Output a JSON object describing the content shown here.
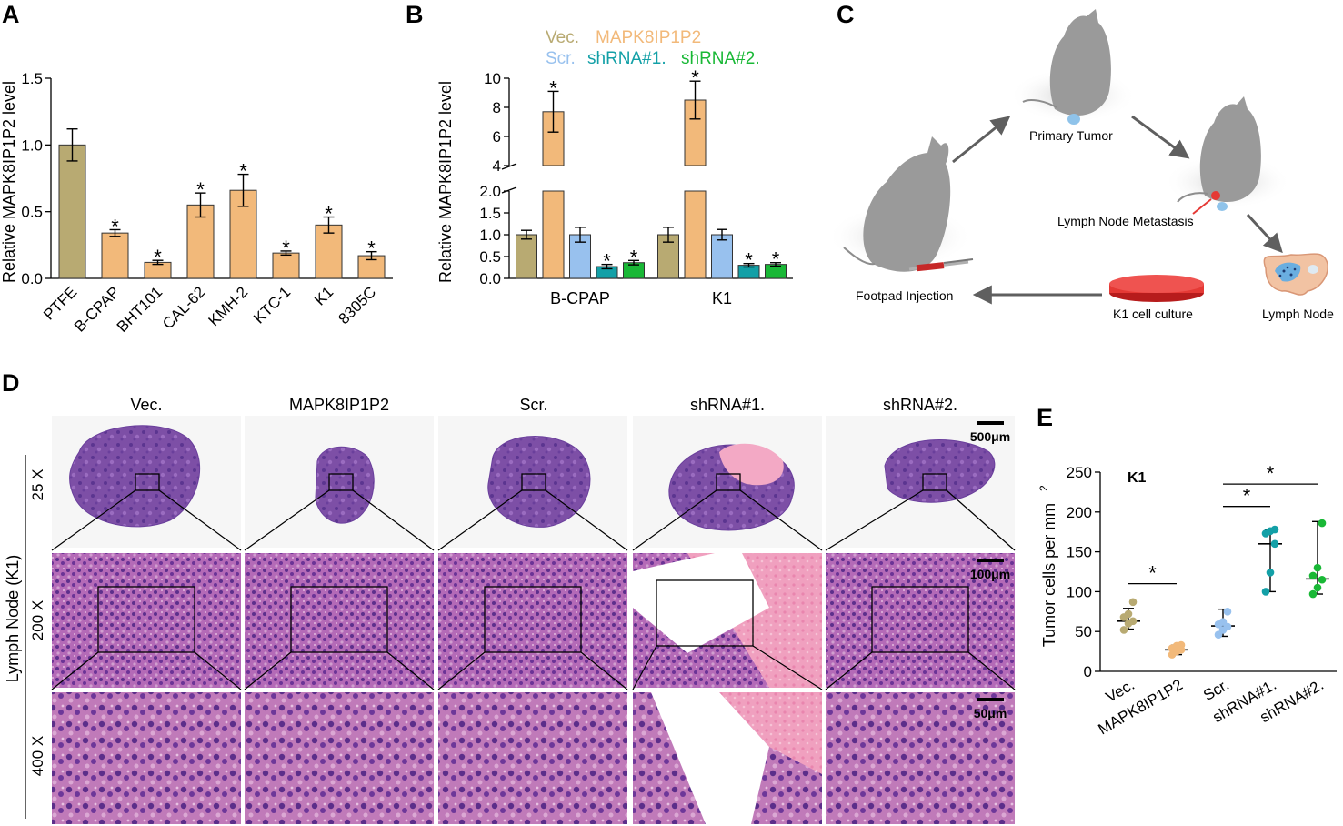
{
  "panel_letters": {
    "a": "A",
    "b": "B",
    "c": "C",
    "d": "D",
    "e": "E"
  },
  "colors": {
    "vec": "#b8aa72",
    "mapk": "#f2b97a",
    "scr": "#98c1ee",
    "sh1": "#13a0a7",
    "sh2": "#19b836",
    "grey": "#8c8c8c",
    "he_purple": "#7a4aa6"
  },
  "chart_data": [
    {
      "id": "A",
      "type": "bar",
      "ylabel": "Relative MAPK8IP1P2 level",
      "ylim": [
        0,
        1.5
      ],
      "yticks": [
        0.0,
        0.5,
        1.0,
        1.5
      ],
      "ytick_labels": [
        "0.0",
        "0.5",
        "1.0",
        "1.5"
      ],
      "categories": [
        "PTFE",
        "B-CPAP",
        "BHT101",
        "CAL-62",
        "KMH-2",
        "KTC-1",
        "K1",
        "8305C"
      ],
      "values": [
        1.0,
        0.34,
        0.12,
        0.55,
        0.66,
        0.19,
        0.4,
        0.17
      ],
      "errors": [
        0.12,
        0.025,
        0.015,
        0.09,
        0.12,
        0.015,
        0.06,
        0.03
      ],
      "significance": [
        "",
        "*",
        "*",
        "*",
        "*",
        "*",
        "*",
        "*"
      ]
    },
    {
      "id": "B",
      "type": "bar",
      "ylabel": "Relative MAPK8IP1P2 level",
      "broken_axis": {
        "lower": [
          0,
          2.0
        ],
        "upper": [
          4,
          10
        ]
      },
      "yticks_lower": [
        0.0,
        0.5,
        1.0,
        1.5,
        2.0
      ],
      "ytick_labels_lower": [
        "0.0",
        "0.5",
        "1.0",
        "1.5",
        "2.0"
      ],
      "yticks_upper": [
        4,
        6,
        8,
        10
      ],
      "ytick_labels_upper": [
        "4",
        "6",
        "8",
        "10"
      ],
      "groups": [
        "B-CPAP",
        "K1"
      ],
      "legend_row1": [
        "Vec.",
        "MAPK8IP1P2"
      ],
      "legend_row2": [
        "Scr.",
        "shRNA#1.",
        "shRNA#2."
      ],
      "series": [
        {
          "name": "Vec.",
          "values": [
            1.0,
            1.0
          ],
          "errors": [
            0.1,
            0.17
          ],
          "sig": [
            "",
            ""
          ]
        },
        {
          "name": "MAPK8IP1P2",
          "values": [
            7.7,
            8.5
          ],
          "errors": [
            1.4,
            1.3
          ],
          "sig": [
            "*",
            "*"
          ]
        },
        {
          "name": "Scr.",
          "values": [
            1.0,
            1.0
          ],
          "errors": [
            0.17,
            0.12
          ],
          "sig": [
            "",
            ""
          ]
        },
        {
          "name": "shRNA#1.",
          "values": [
            0.27,
            0.3
          ],
          "errors": [
            0.05,
            0.04
          ],
          "sig": [
            "*",
            "*"
          ]
        },
        {
          "name": "shRNA#2.",
          "values": [
            0.36,
            0.32
          ],
          "errors": [
            0.05,
            0.04
          ],
          "sig": [
            "*",
            "*"
          ]
        }
      ]
    },
    {
      "id": "E",
      "type": "scatter",
      "title": "K1",
      "ylabel": "Tumor cells per mm",
      "ylabel_sup": "2",
      "ylim": [
        0,
        250
      ],
      "yticks": [
        0,
        50,
        100,
        150,
        200,
        250
      ],
      "ytick_labels": [
        "0",
        "50",
        "100",
        "150",
        "200",
        "250"
      ],
      "categories": [
        "Vec.",
        "MAPK8IP1P2",
        "Scr.",
        "shRNA#1.",
        "shRNA#2."
      ],
      "points": [
        [
          52,
          60,
          63,
          68,
          72,
          87
        ],
        [
          21,
          25,
          27,
          29,
          32,
          33
        ],
        [
          46,
          52,
          56,
          59,
          62,
          75
        ],
        [
          100,
          124,
          160,
          173,
          176,
          178
        ],
        [
          97,
          105,
          115,
          120,
          130,
          186
        ]
      ],
      "median": [
        63,
        27,
        57,
        160,
        116
      ],
      "range_low": [
        53,
        21,
        44,
        100,
        97
      ],
      "range_high": [
        79,
        33,
        78,
        178,
        188
      ],
      "significance": [
        {
          "from": "Vec.",
          "to": "MAPK8IP1P2",
          "label": "*",
          "y": 110
        },
        {
          "from": "Scr.",
          "to": "shRNA#1.",
          "label": "*",
          "y": 207
        },
        {
          "from": "Scr.",
          "to": "shRNA#2.",
          "label": "*",
          "y": 235
        }
      ]
    }
  ],
  "panel_c": {
    "labels": {
      "primary": "Primary Tumor",
      "lnm": "Lymph Node Metastasis",
      "footpad": "Footpad Injection",
      "culture": "K1 cell culture",
      "lymph": "Lymph Node"
    }
  },
  "panel_d": {
    "columns": [
      "Vec.",
      "MAPK8IP1P2",
      "Scr.",
      "shRNA#1.",
      "shRNA#2."
    ],
    "rows": [
      "25 X",
      "200 X",
      "400 X"
    ],
    "side_label": "Lymph Node (K1)",
    "scale_bars": [
      "500μm",
      "100μm",
      "50μm"
    ]
  }
}
